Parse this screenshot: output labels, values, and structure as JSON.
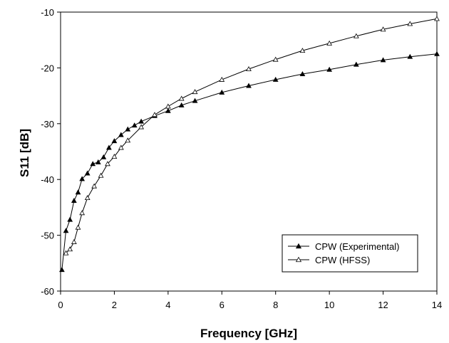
{
  "chart_data": {
    "type": "line",
    "title": "",
    "xlabel": "Frequency [GHz]",
    "ylabel": "S11 [dB]",
    "xlim": [
      0,
      14
    ],
    "ylim": [
      -60,
      -10
    ],
    "xticks": [
      0,
      2,
      4,
      6,
      8,
      10,
      12,
      14
    ],
    "yticks": [
      -60,
      -50,
      -40,
      -30,
      -20,
      -10
    ],
    "grid": false,
    "legend_position": "bottom-right",
    "series": [
      {
        "name": "CPW (Experimental)",
        "marker": "filled-triangle",
        "color": "#000000",
        "x": [
          0.05,
          0.2,
          0.35,
          0.5,
          0.65,
          0.8,
          1.0,
          1.2,
          1.4,
          1.6,
          1.8,
          2.0,
          2.25,
          2.5,
          2.75,
          3.0,
          3.5,
          4.0,
          4.5,
          5.0,
          6.0,
          7.0,
          8.0,
          9.0,
          10.0,
          11.0,
          12.0,
          13.0,
          14.0
        ],
        "values": [
          -56.2,
          -49.2,
          -47.2,
          -43.8,
          -42.3,
          -39.9,
          -38.9,
          -37.2,
          -36.9,
          -36.0,
          -34.3,
          -33.1,
          -32.0,
          -31.0,
          -30.3,
          -29.6,
          -28.6,
          -27.7,
          -26.7,
          -25.9,
          -24.4,
          -23.2,
          -22.1,
          -21.1,
          -20.3,
          -19.4,
          -18.6,
          -18.0,
          -17.5
        ]
      },
      {
        "name": "CPW (HFSS)",
        "marker": "open-triangle",
        "color": "#000000",
        "x": [
          0.2,
          0.35,
          0.5,
          0.65,
          0.8,
          1.0,
          1.25,
          1.5,
          1.75,
          2.0,
          2.25,
          2.5,
          3.0,
          3.5,
          4.0,
          4.5,
          5.0,
          6.0,
          7.0,
          8.0,
          9.0,
          10.0,
          11.0,
          12.0,
          13.0,
          14.0
        ],
        "values": [
          -53.2,
          -52.5,
          -51.2,
          -48.6,
          -46.0,
          -43.3,
          -41.2,
          -39.3,
          -37.2,
          -35.9,
          -34.3,
          -33.0,
          -30.6,
          -28.4,
          -26.9,
          -25.5,
          -24.3,
          -22.1,
          -20.2,
          -18.5,
          -16.9,
          -15.6,
          -14.3,
          -13.1,
          -12.1,
          -11.2
        ]
      }
    ]
  }
}
